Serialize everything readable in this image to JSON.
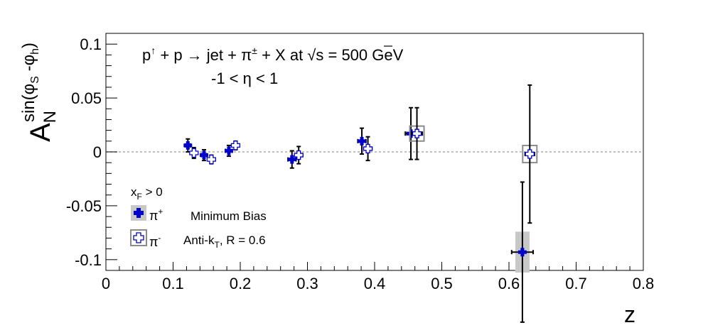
{
  "chart_data": {
    "type": "scatter",
    "title_line1": {
      "a": "p",
      "a_sup": "↑",
      "b": " + p → jet + π",
      "b_sup": "±",
      "c": " + X at  ",
      "sqrt": "√",
      "d": "s = 500 GeV"
    },
    "title_line2": "-1 < η < 1",
    "xlabel": "z",
    "ylabel": {
      "base": "A",
      "sub": "N",
      "sup": "sin(φ",
      "sup_sub1": "S",
      "sup_mid": " -φ",
      "sup_sub2": "h",
      "sup_end": ")"
    },
    "xlim": [
      0,
      0.8
    ],
    "ylim": [
      -0.11,
      0.11
    ],
    "x_ticks": [
      {
        "value": 0,
        "label": "0"
      },
      {
        "value": 0.1,
        "label": "0.1"
      },
      {
        "value": 0.2,
        "label": "0.2"
      },
      {
        "value": 0.3,
        "label": "0.3"
      },
      {
        "value": 0.4,
        "label": "0.4"
      },
      {
        "value": 0.5,
        "label": "0.5"
      },
      {
        "value": 0.6,
        "label": "0.6"
      },
      {
        "value": 0.7,
        "label": "0.7"
      },
      {
        "value": 0.8,
        "label": "0.8"
      }
    ],
    "y_ticks": [
      {
        "value": -0.1,
        "label": "-0.1"
      },
      {
        "value": -0.05,
        "label": "-0.05"
      },
      {
        "value": 0,
        "label": "0"
      },
      {
        "value": 0.05,
        "label": "0.05"
      },
      {
        "value": 0.1,
        "label": "0.1"
      }
    ],
    "grid": false,
    "zero_line": true,
    "legend": {
      "placement": "bottom-left",
      "header": {
        "text": "x",
        "sub": "F",
        "rest": " > 0"
      },
      "entries": [
        {
          "symbol": "π",
          "sup": "+",
          "text": "Minimum Bias"
        },
        {
          "symbol": "π",
          "sup": "-",
          "text": "Anti-k",
          "text_sub": "T",
          "text_end": ", R = 0.6"
        }
      ]
    },
    "colors": {
      "pi_plus": "#0000cc",
      "pi_minus_fill": "#ffffff",
      "pi_minus_edge": "#0000cc",
      "sys_box_plus": "#c8c8c8",
      "sys_box_minus": "#8c8c8c"
    },
    "series": [
      {
        "name": "π+",
        "marker": "filled-cross",
        "points": [
          {
            "x": 0.122,
            "y": 0.006,
            "xerr": 0.004,
            "yerr": 0.006
          },
          {
            "x": 0.146,
            "y": -0.003,
            "xerr": 0.004,
            "yerr": 0.005
          },
          {
            "x": 0.183,
            "y": 0.001,
            "xerr": 0.005,
            "yerr": 0.005
          },
          {
            "x": 0.277,
            "y": -0.007,
            "xerr": 0.006,
            "yerr": 0.008
          },
          {
            "x": 0.381,
            "y": 0.01,
            "xerr": 0.006,
            "yerr": 0.012
          },
          {
            "x": 0.454,
            "y": 0.017,
            "xerr": 0.008,
            "yerr": 0.024,
            "sys": 0.002
          },
          {
            "x": 0.62,
            "y": -0.093,
            "xerr": 0.016,
            "yerr": 0.065,
            "sys": 0.019
          }
        ]
      },
      {
        "name": "π-",
        "marker": "open-cross",
        "points": [
          {
            "x": 0.131,
            "y": -0.001,
            "xerr": 0.004,
            "yerr": 0.005
          },
          {
            "x": 0.157,
            "y": -0.007,
            "xerr": 0.004,
            "yerr": 0.004
          },
          {
            "x": 0.193,
            "y": 0.006,
            "xerr": 0.005,
            "yerr": 0.004
          },
          {
            "x": 0.287,
            "y": -0.003,
            "xerr": 0.006,
            "yerr": 0.008
          },
          {
            "x": 0.39,
            "y": 0.003,
            "xerr": 0.006,
            "yerr": 0.011
          },
          {
            "x": 0.463,
            "y": 0.017,
            "xerr": 0.008,
            "yerr": 0.024,
            "sys": 0.003
          },
          {
            "x": 0.631,
            "y": -0.002,
            "xerr": 0.007,
            "yerr": 0.064,
            "sys": 0.004
          }
        ]
      }
    ]
  }
}
